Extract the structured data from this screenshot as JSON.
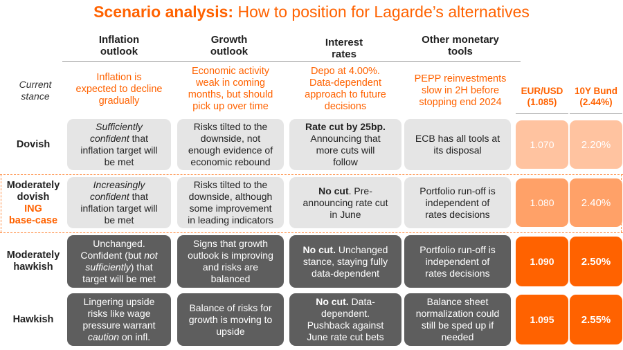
{
  "title": {
    "lead": "Scenario analysis:",
    "rest": " How to position for Lagarde’s alternatives"
  },
  "columns": {
    "inflation": [
      "Inflation",
      "outlook"
    ],
    "growth": [
      "Growth",
      "outlook"
    ],
    "rates": [
      "Interest",
      "rates"
    ],
    "other": [
      "Other monetary",
      "tools"
    ]
  },
  "current": {
    "label": [
      "Current",
      "stance"
    ],
    "inflation": [
      "Inflation is",
      "expected to decline",
      "gradually"
    ],
    "growth": [
      "Economic activity",
      "weak in coming",
      "months, but should",
      "pick up over time"
    ],
    "rates": [
      "Depo at 4.00%.",
      "Data-dependent",
      "approach to future",
      "decisions"
    ],
    "other": [
      "PEPP reinvestments",
      "slow in 2H before",
      "stopping end 2024"
    ],
    "eurusd": [
      "EUR/USD",
      "(1.085)"
    ],
    "bund": [
      "10Y Bund",
      "(2.44%)"
    ]
  },
  "rows": {
    "dovish": {
      "label": "Dovish",
      "inflation": {
        "i1": "Sufficiently",
        "i2": "confident",
        "r2": " that",
        "l3": "inflation target will",
        "l4": "be met"
      },
      "growth": [
        "Risks tilted to the",
        "downside, not",
        "enough evidence of",
        "economic rebound"
      ],
      "rates": {
        "bold": "Rate cut by 25bp.",
        "l2": "Announcing that",
        "l3": "more cuts will",
        "l4": "follow"
      },
      "other": [
        "ECB has all tools at",
        "its disposal"
      ],
      "eurusd": "1.070",
      "bund": "2.20%"
    },
    "mod_dovish": {
      "label": [
        "Moderately",
        "dovish"
      ],
      "tag": [
        "ING",
        "base-case"
      ],
      "inflation": {
        "i1": "Increasingly",
        "i2": "confident",
        "r2": " that",
        "l3": "inflation target will",
        "l4": "be met"
      },
      "growth": [
        "Risks tilted to the",
        "downside, although",
        "some improvement",
        "in leading indicators"
      ],
      "rates": {
        "bold": "No cut",
        "r1": ". Pre-",
        "l2": "announcing rate cut",
        "l3": "in June"
      },
      "other": [
        "Portfolio run-off is",
        "independent of",
        "rates decisions"
      ],
      "eurusd": "1.080",
      "bund": "2.40%"
    },
    "mod_hawkish": {
      "label": [
        "Moderately",
        "hawkish"
      ],
      "inflation": {
        "l1": "Unchanged.",
        "l2a": "Confident (but ",
        "l2i": "not",
        "l3i": "sufficiently",
        "l3r": ") that",
        "l4": "target will be met"
      },
      "growth": [
        "Signs that growth",
        "outlook is improving",
        "and risks are",
        "balanced"
      ],
      "rates": {
        "bold": "No cut.",
        "r1": " Unchanged",
        "l2": "stance, staying fully",
        "l3": "data-dependent"
      },
      "other": [
        "Portfolio run-off is",
        "independent of",
        "rates decisions"
      ],
      "eurusd": "1.090",
      "bund": "2.50%"
    },
    "hawkish": {
      "label": "Hawkish",
      "inflation": {
        "l1": "Lingering upside",
        "l2": "risks like wage",
        "l3": "pressure warrant",
        "l4i": "caution",
        "l4r": " on infl."
      },
      "growth": [
        "Balance of risks for",
        "growth is moving to",
        "upside"
      ],
      "rates": {
        "bold1": "No cut.",
        "r1": " Data-",
        "l2": "dependent.",
        "l3": "Pushback against",
        "l4": "June rate cut bets"
      },
      "other": [
        "Balance sheet",
        "normalization could",
        "still be sped up if",
        "needed"
      ],
      "eurusd": "1.095",
      "bund": "2.55%"
    }
  },
  "colors": {
    "accent": "#ff6200",
    "light_cell": "#e5e5e5",
    "dark_cell": "#5e5e5e",
    "market_1": "#ffc3a0",
    "market_2": "#ffa168",
    "market_3": "#ff6200"
  }
}
